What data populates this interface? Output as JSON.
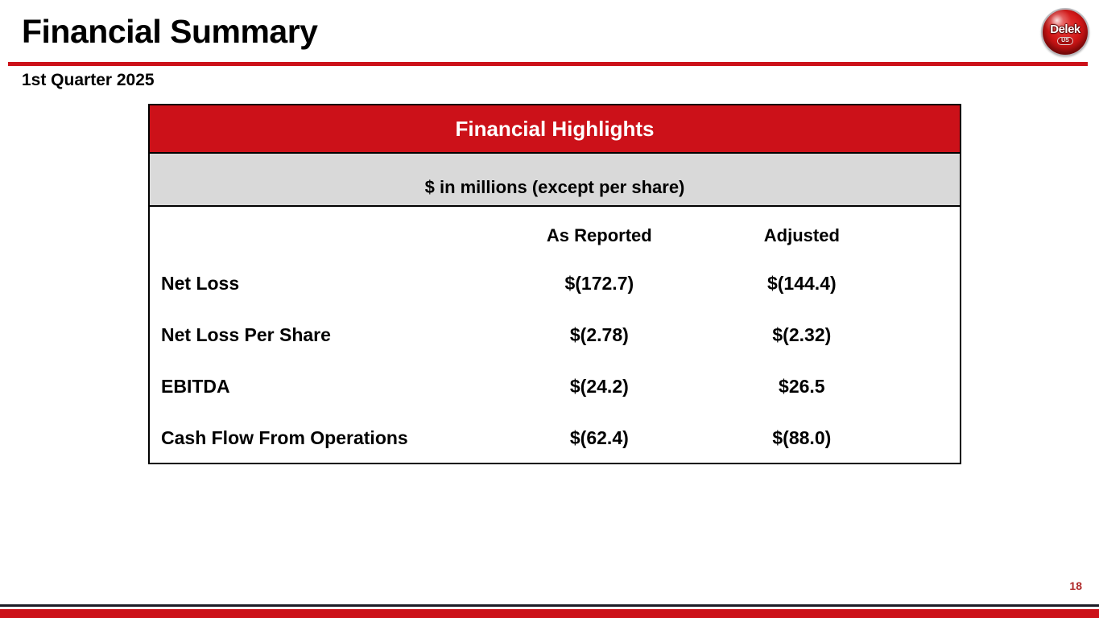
{
  "slide": {
    "title": "Financial Summary",
    "subtitle": "1st Quarter 2025",
    "page_number": "18",
    "logo": {
      "brand": "Delek",
      "sub": "US"
    }
  },
  "table": {
    "title": "Financial Highlights",
    "units_note": "$ in millions (except per share)",
    "columns": [
      "As Reported",
      "Adjusted"
    ],
    "rows": [
      {
        "label": "Net Loss",
        "as_reported": "$(172.7)",
        "adjusted": "$(144.4)"
      },
      {
        "label": "Net Loss Per Share",
        "as_reported": "$(2.78)",
        "adjusted": "$(2.32)"
      },
      {
        "label": "EBITDA",
        "as_reported": "$(24.2)",
        "adjusted": "$26.5"
      },
      {
        "label": "Cash Flow From Operations",
        "as_reported": "$(62.4)",
        "adjusted": "$(88.0)"
      }
    ]
  },
  "colors": {
    "brand_red": "#cc1119",
    "gray_band": "#d9d9d9",
    "page_number_red": "#b02b2b",
    "footer_dark_line": "#1c1c26"
  }
}
